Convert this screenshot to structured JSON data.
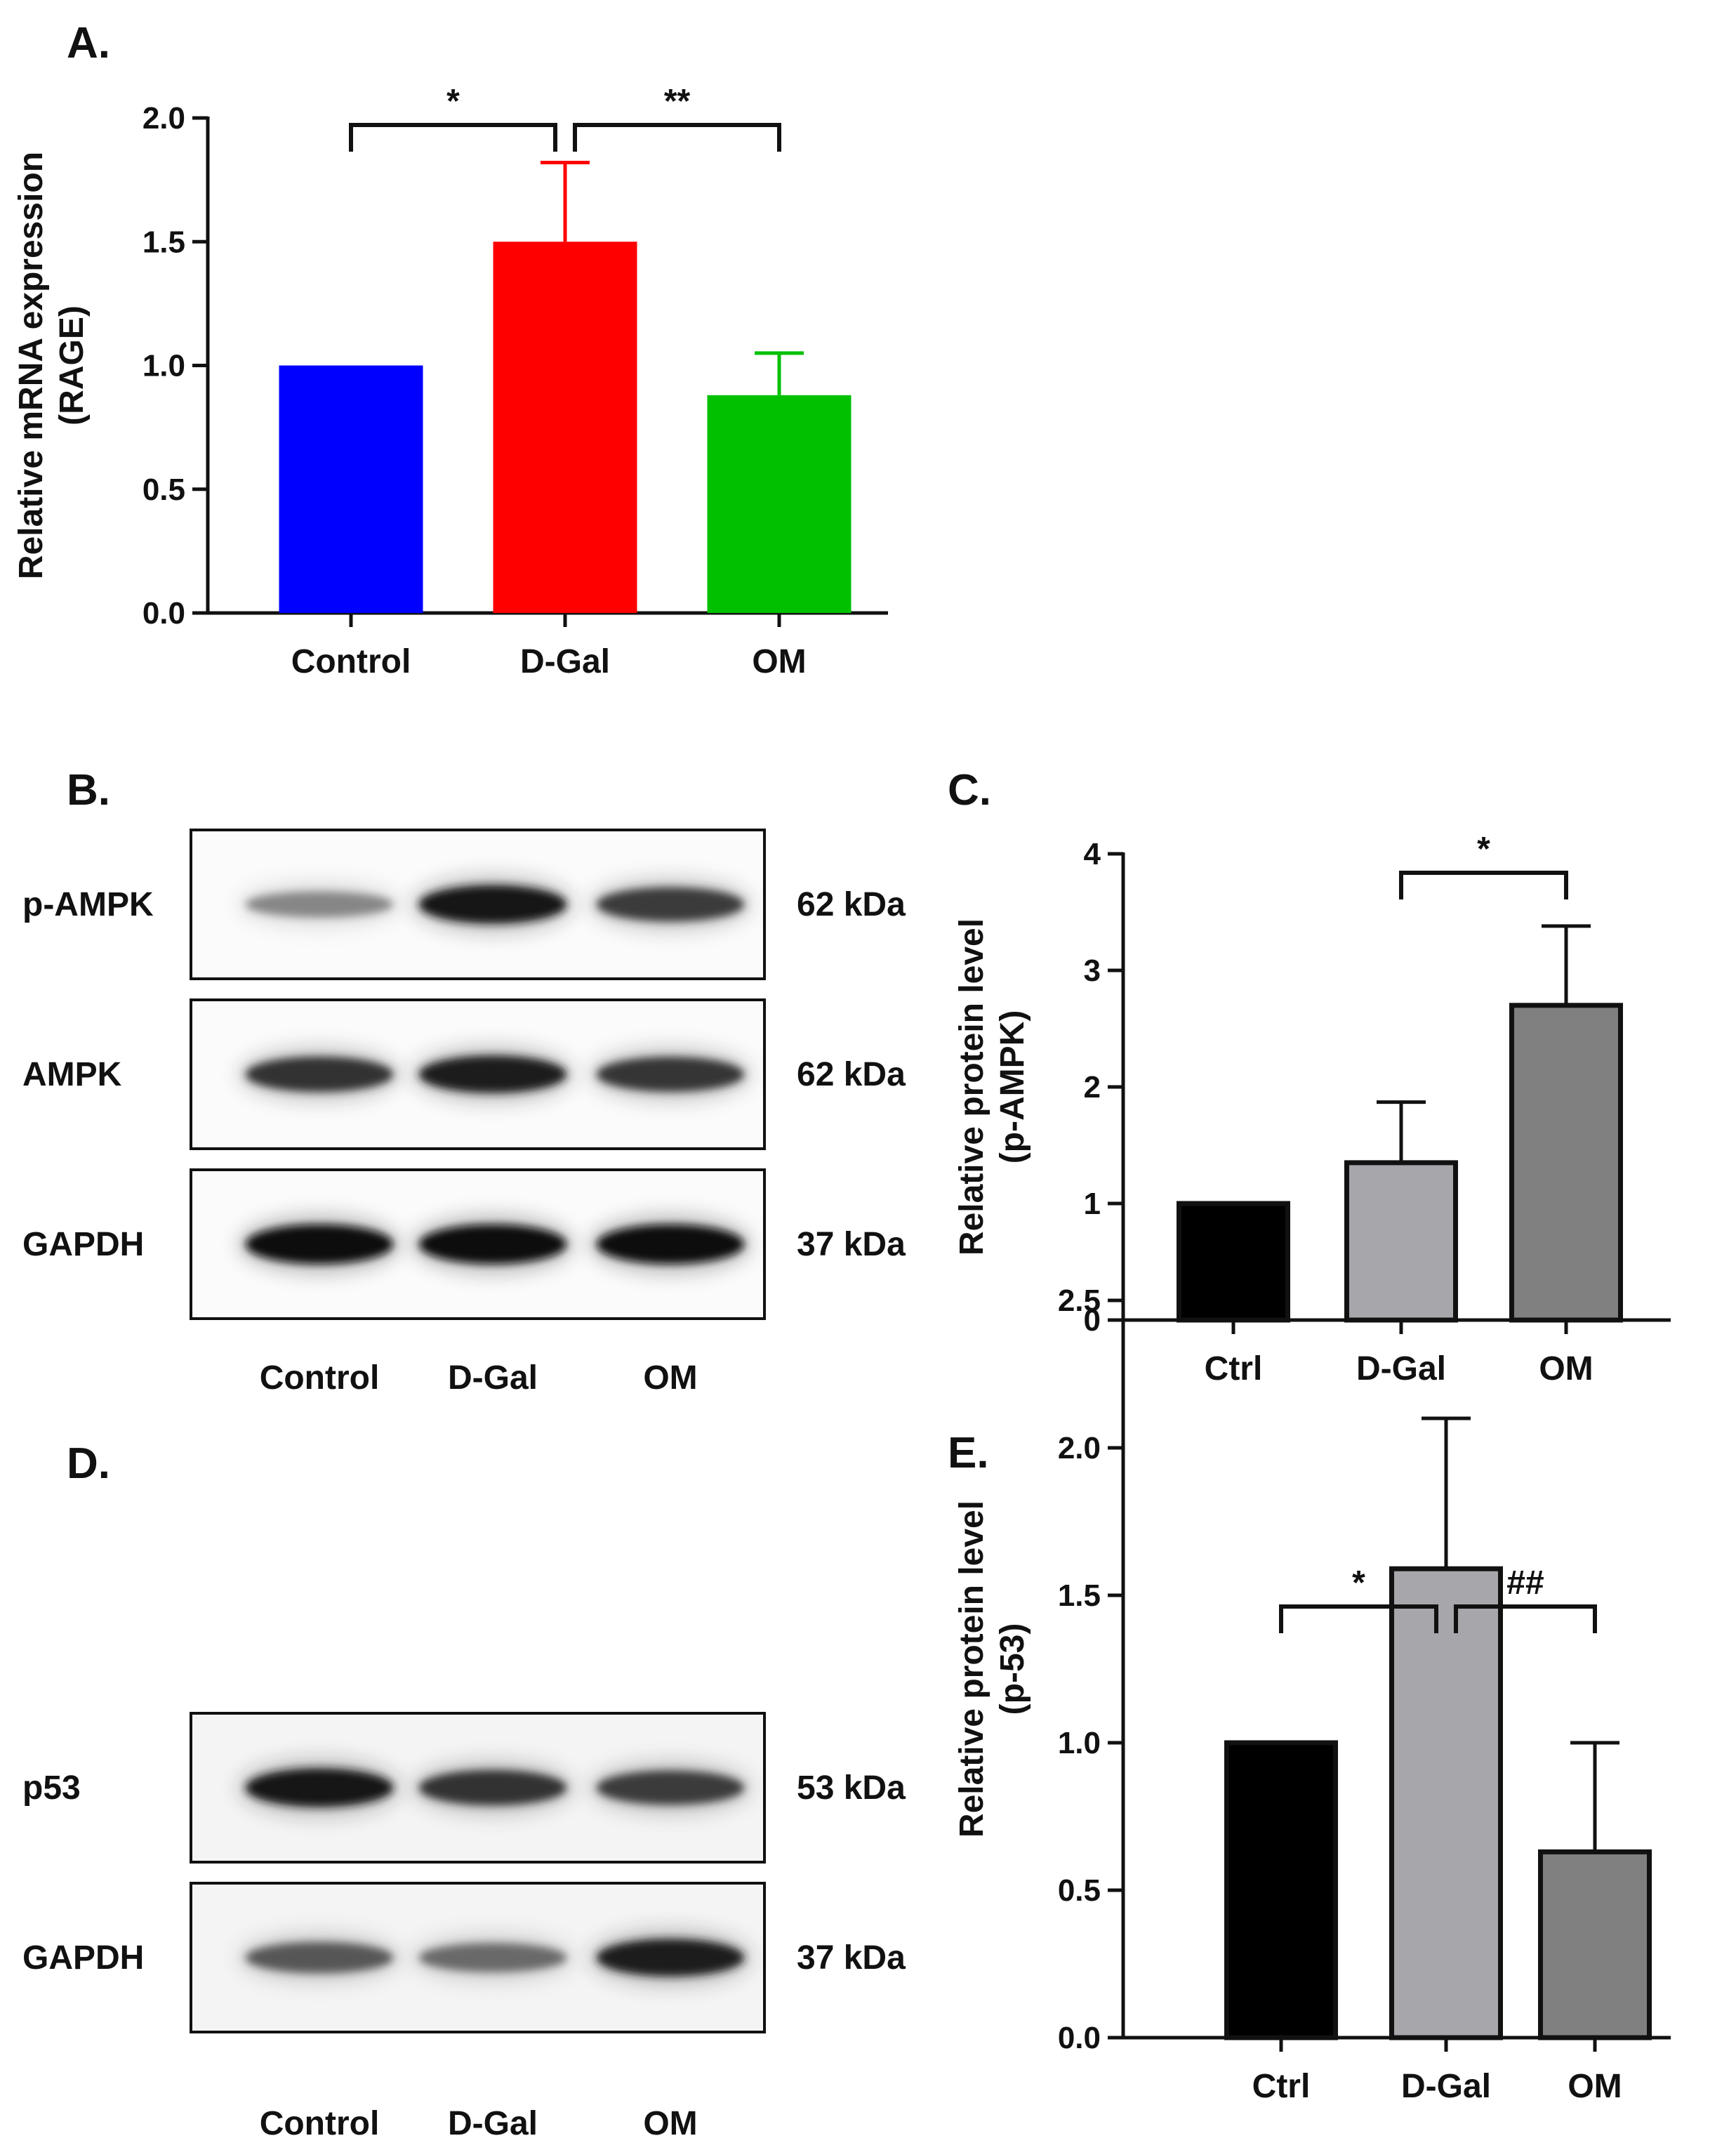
{
  "panel_labels": {
    "A": "A.",
    "B": "B.",
    "C": "C.",
    "D": "D.",
    "E": "E."
  },
  "chart_data": [
    {
      "id": "A",
      "type": "bar",
      "categories": [
        "Control",
        "D-Gal",
        "OM"
      ],
      "values": [
        1.0,
        1.5,
        0.88
      ],
      "errors": [
        0,
        0.32,
        0.17
      ],
      "colors": [
        "#0000ff",
        "#ff0000",
        "#00c000"
      ],
      "ylabel": [
        "Relative mRNA expression",
        "(RAGE)"
      ],
      "ylim": [
        0,
        2.0
      ],
      "yticks": [
        "0.0",
        "0.5",
        "1.0",
        "1.5",
        "2.0"
      ],
      "significance": [
        {
          "from": 0,
          "to": 1,
          "label": "*"
        },
        {
          "from": 1,
          "to": 2,
          "label": "**"
        }
      ]
    },
    {
      "id": "C",
      "type": "bar",
      "categories": [
        "Ctrl",
        "D-Gal",
        "OM"
      ],
      "values": [
        1.0,
        1.35,
        2.7
      ],
      "errors": [
        0,
        0.52,
        0.68
      ],
      "colors": [
        "#000000",
        "#a6a6ab",
        "#808080"
      ],
      "ylabel": [
        "Relative protein level",
        "(p-AMPK)"
      ],
      "ylim": [
        0,
        4
      ],
      "yticks": [
        "0",
        "1",
        "2",
        "3",
        "4"
      ],
      "significance": [
        {
          "from": 1,
          "to": 2,
          "label": "*"
        }
      ]
    },
    {
      "id": "E",
      "type": "bar",
      "categories": [
        "Ctrl",
        "D-Gal",
        "OM"
      ],
      "values": [
        1.0,
        1.59,
        0.63
      ],
      "errors": [
        0,
        0.51,
        0.37
      ],
      "colors": [
        "#000000",
        "#a6a6ab",
        "#808080"
      ],
      "ylabel": [
        "Relative protein level",
        "(p-53)"
      ],
      "ylim": [
        0,
        2.5
      ],
      "yticks": [
        "0.0",
        "0.5",
        "1.0",
        "1.5",
        "2.0",
        "2.5"
      ],
      "significance": [
        {
          "from": 0,
          "to": 1,
          "label": "*"
        },
        {
          "from": 1,
          "to": 2,
          "label": "##"
        }
      ]
    }
  ],
  "blots": [
    {
      "id": "B",
      "lanes": [
        "Control",
        "D-Gal",
        "OM"
      ],
      "rows": [
        {
          "protein": "p-AMPK",
          "kda": "62 kDa",
          "intensities": [
            0.35,
            0.95,
            0.75
          ]
        },
        {
          "protein": "AMPK",
          "kda": "62 kDa",
          "intensities": [
            0.8,
            0.9,
            0.78
          ]
        },
        {
          "protein": "GAPDH",
          "kda": "37 kDa",
          "intensities": [
            1.0,
            1.0,
            1.0
          ]
        }
      ]
    },
    {
      "id": "D",
      "lanes": [
        "Control",
        "D-Gal",
        "OM"
      ],
      "rows": [
        {
          "protein": "p53",
          "kda": "53 kDa",
          "intensities": [
            0.95,
            0.8,
            0.75
          ]
        },
        {
          "protein": "GAPDH",
          "kda": "37 kDa",
          "intensities": [
            0.6,
            0.5,
            0.9
          ]
        }
      ]
    }
  ]
}
